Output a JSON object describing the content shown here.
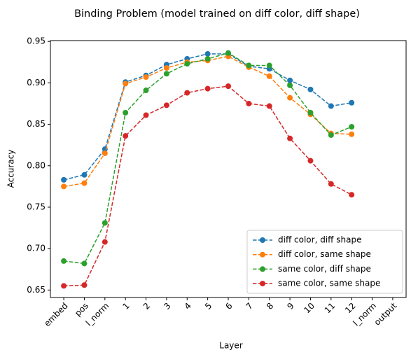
{
  "chart_data": {
    "type": "line",
    "title": "Binding Problem (model trained on diff color, diff shape)",
    "x_label": "Layer",
    "y_label": "Accuracy",
    "categories": [
      "embed",
      "pos",
      "l_norm",
      "1",
      "2",
      "3",
      "4",
      "5",
      "6",
      "7",
      "8",
      "9",
      "10",
      "11",
      "12",
      "l_norm",
      "output"
    ],
    "series": [
      {
        "name": "diff color, diff shape",
        "color": "#1f77b4",
        "values": [
          0.783,
          0.789,
          0.82,
          0.901,
          0.909,
          0.922,
          0.929,
          0.935,
          0.935,
          0.92,
          0.917,
          0.903,
          0.892,
          0.872,
          0.876,
          null,
          null
        ]
      },
      {
        "name": "diff color, same shape",
        "color": "#ff7f0e",
        "values": [
          0.775,
          0.779,
          0.815,
          0.899,
          0.907,
          0.918,
          0.925,
          0.927,
          0.932,
          0.919,
          0.908,
          0.882,
          0.862,
          0.839,
          0.838,
          null,
          null
        ]
      },
      {
        "name": "same color, diff shape",
        "color": "#2ca02c",
        "values": [
          0.685,
          0.682,
          0.731,
          0.864,
          0.891,
          0.911,
          0.923,
          0.929,
          0.936,
          0.921,
          0.921,
          0.897,
          0.864,
          0.837,
          0.847,
          null,
          null
        ]
      },
      {
        "name": "same color, same shape",
        "color": "#d62728",
        "values": [
          0.655,
          0.656,
          0.708,
          0.836,
          0.861,
          0.873,
          0.888,
          0.893,
          0.896,
          0.875,
          0.872,
          0.833,
          0.806,
          0.778,
          0.765,
          null,
          null
        ]
      }
    ],
    "ylim": [
      0.641,
      0.951
    ],
    "yticks": [
      0.65,
      {
        "value": 0.7,
        "label": "0.70"
      },
      0.75,
      {
        "value": 0.8,
        "label": "0.80"
      },
      0.85,
      {
        "value": 0.9,
        "label": "0.90"
      },
      0.95
    ],
    "legend": "lower right",
    "line_style": "dashed",
    "marker": "circle"
  }
}
